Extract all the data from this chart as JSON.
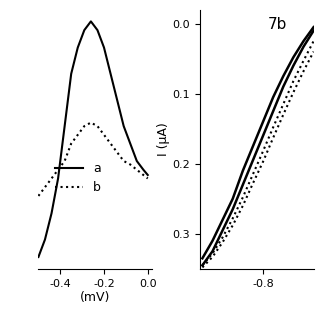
{
  "left_panel": {
    "xlabel": "(mV)",
    "xlim": [
      -0.5,
      0.02
    ],
    "xticks": [
      -0.4,
      -0.2,
      0.0
    ],
    "solid_x": [
      -0.5,
      -0.47,
      -0.44,
      -0.41,
      -0.38,
      -0.35,
      -0.32,
      -0.29,
      -0.26,
      -0.23,
      -0.2,
      -0.17,
      -0.14,
      -0.11,
      -0.08,
      -0.05,
      -0.02,
      0.0
    ],
    "solid_y": [
      -0.065,
      -0.055,
      -0.04,
      -0.02,
      0.01,
      0.04,
      0.055,
      0.065,
      0.07,
      0.065,
      0.055,
      0.04,
      0.025,
      0.01,
      0.0,
      -0.01,
      -0.015,
      -0.018
    ],
    "dotted_x": [
      -0.5,
      -0.47,
      -0.44,
      -0.41,
      -0.38,
      -0.35,
      -0.32,
      -0.29,
      -0.26,
      -0.23,
      -0.2,
      -0.17,
      -0.14,
      -0.11,
      -0.08,
      -0.05,
      -0.02,
      0.0
    ],
    "dotted_y": [
      -0.03,
      -0.025,
      -0.02,
      -0.015,
      -0.01,
      0.0,
      0.005,
      0.01,
      0.012,
      0.01,
      0.005,
      0.0,
      -0.005,
      -0.01,
      -0.012,
      -0.015,
      -0.018,
      -0.02
    ]
  },
  "right_panel": {
    "label": "7b",
    "ylabel": "I (μA)",
    "xlim": [
      -1.05,
      -0.6
    ],
    "xticks": [
      -0.8
    ],
    "ylim": [
      0.35,
      -0.02
    ],
    "yticks": [
      0.0,
      0.1,
      0.2,
      0.3
    ],
    "solid_x": [
      -1.04,
      -1.0,
      -0.96,
      -0.92,
      -0.88,
      -0.84,
      -0.8,
      -0.76,
      -0.72,
      -0.68,
      -0.64,
      -0.6
    ],
    "solid_y": [
      0.335,
      0.31,
      0.28,
      0.25,
      0.21,
      0.175,
      0.14,
      0.105,
      0.075,
      0.048,
      0.025,
      0.005
    ],
    "solid2_x": [
      -1.04,
      -1.0,
      -0.96,
      -0.92,
      -0.88,
      -0.84,
      -0.8,
      -0.76,
      -0.72,
      -0.68,
      -0.64,
      -0.6
    ],
    "solid2_y": [
      0.345,
      0.325,
      0.295,
      0.265,
      0.23,
      0.195,
      0.16,
      0.125,
      0.09,
      0.06,
      0.033,
      0.01
    ],
    "dotted_x": [
      -1.04,
      -1.0,
      -0.96,
      -0.92,
      -0.88,
      -0.84,
      -0.8,
      -0.76,
      -0.72,
      -0.68,
      -0.64,
      -0.6
    ],
    "dotted_y": [
      0.345,
      0.328,
      0.305,
      0.278,
      0.248,
      0.215,
      0.182,
      0.148,
      0.115,
      0.082,
      0.053,
      0.025
    ],
    "dotted2_x": [
      -1.04,
      -1.0,
      -0.96,
      -0.92,
      -0.88,
      -0.84,
      -0.8,
      -0.76,
      -0.72,
      -0.68,
      -0.64,
      -0.6
    ],
    "dotted2_y": [
      0.348,
      0.333,
      0.312,
      0.288,
      0.26,
      0.228,
      0.197,
      0.163,
      0.13,
      0.098,
      0.068,
      0.04
    ]
  },
  "line_color": "#000000",
  "bg_color": "#ffffff"
}
